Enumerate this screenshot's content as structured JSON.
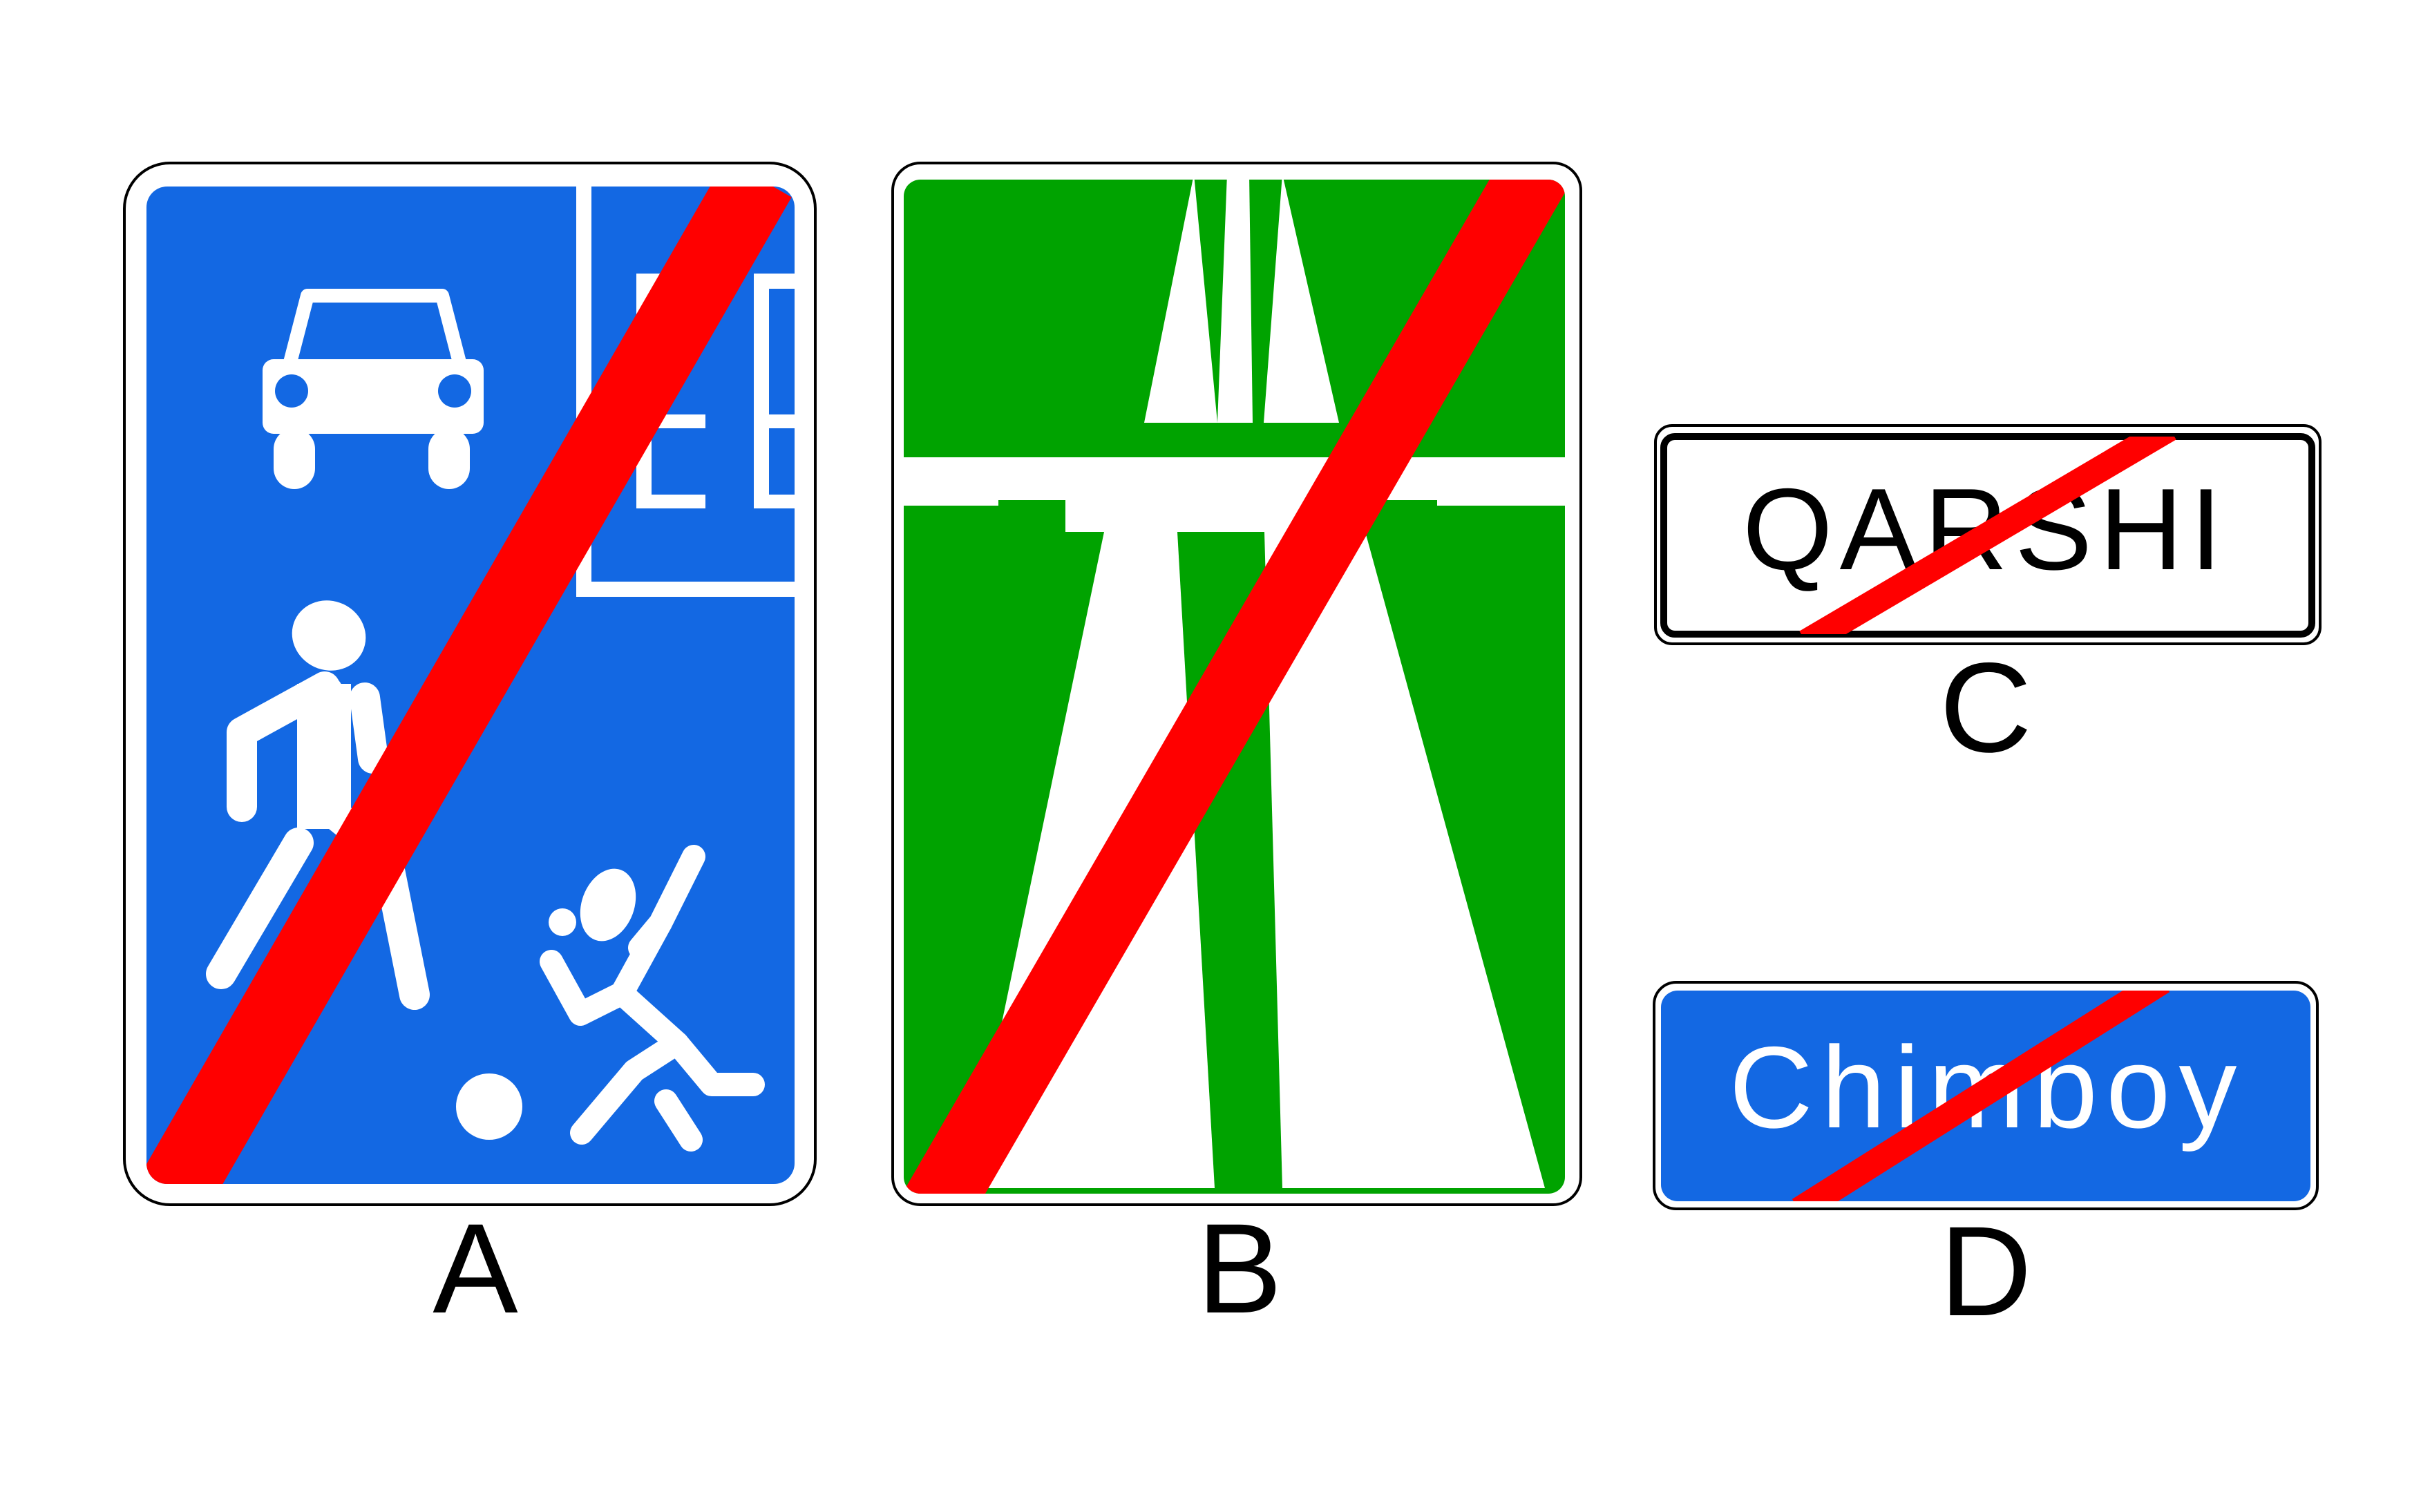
{
  "signs": [
    {
      "letter": "A",
      "meaning": "end-of-living-zone"
    },
    {
      "letter": "B",
      "meaning": "end-of-motorway"
    },
    {
      "letter": "C",
      "place_name": "QARSHI",
      "meaning": "end-of-settlement"
    },
    {
      "letter": "D",
      "place_name": "Chimboy",
      "meaning": "end-of-settlement"
    }
  ],
  "colors": {
    "blue": "#1368E3",
    "green": "#00A300",
    "red": "#FF0000",
    "white": "#FFFFFF",
    "black": "#000000"
  }
}
